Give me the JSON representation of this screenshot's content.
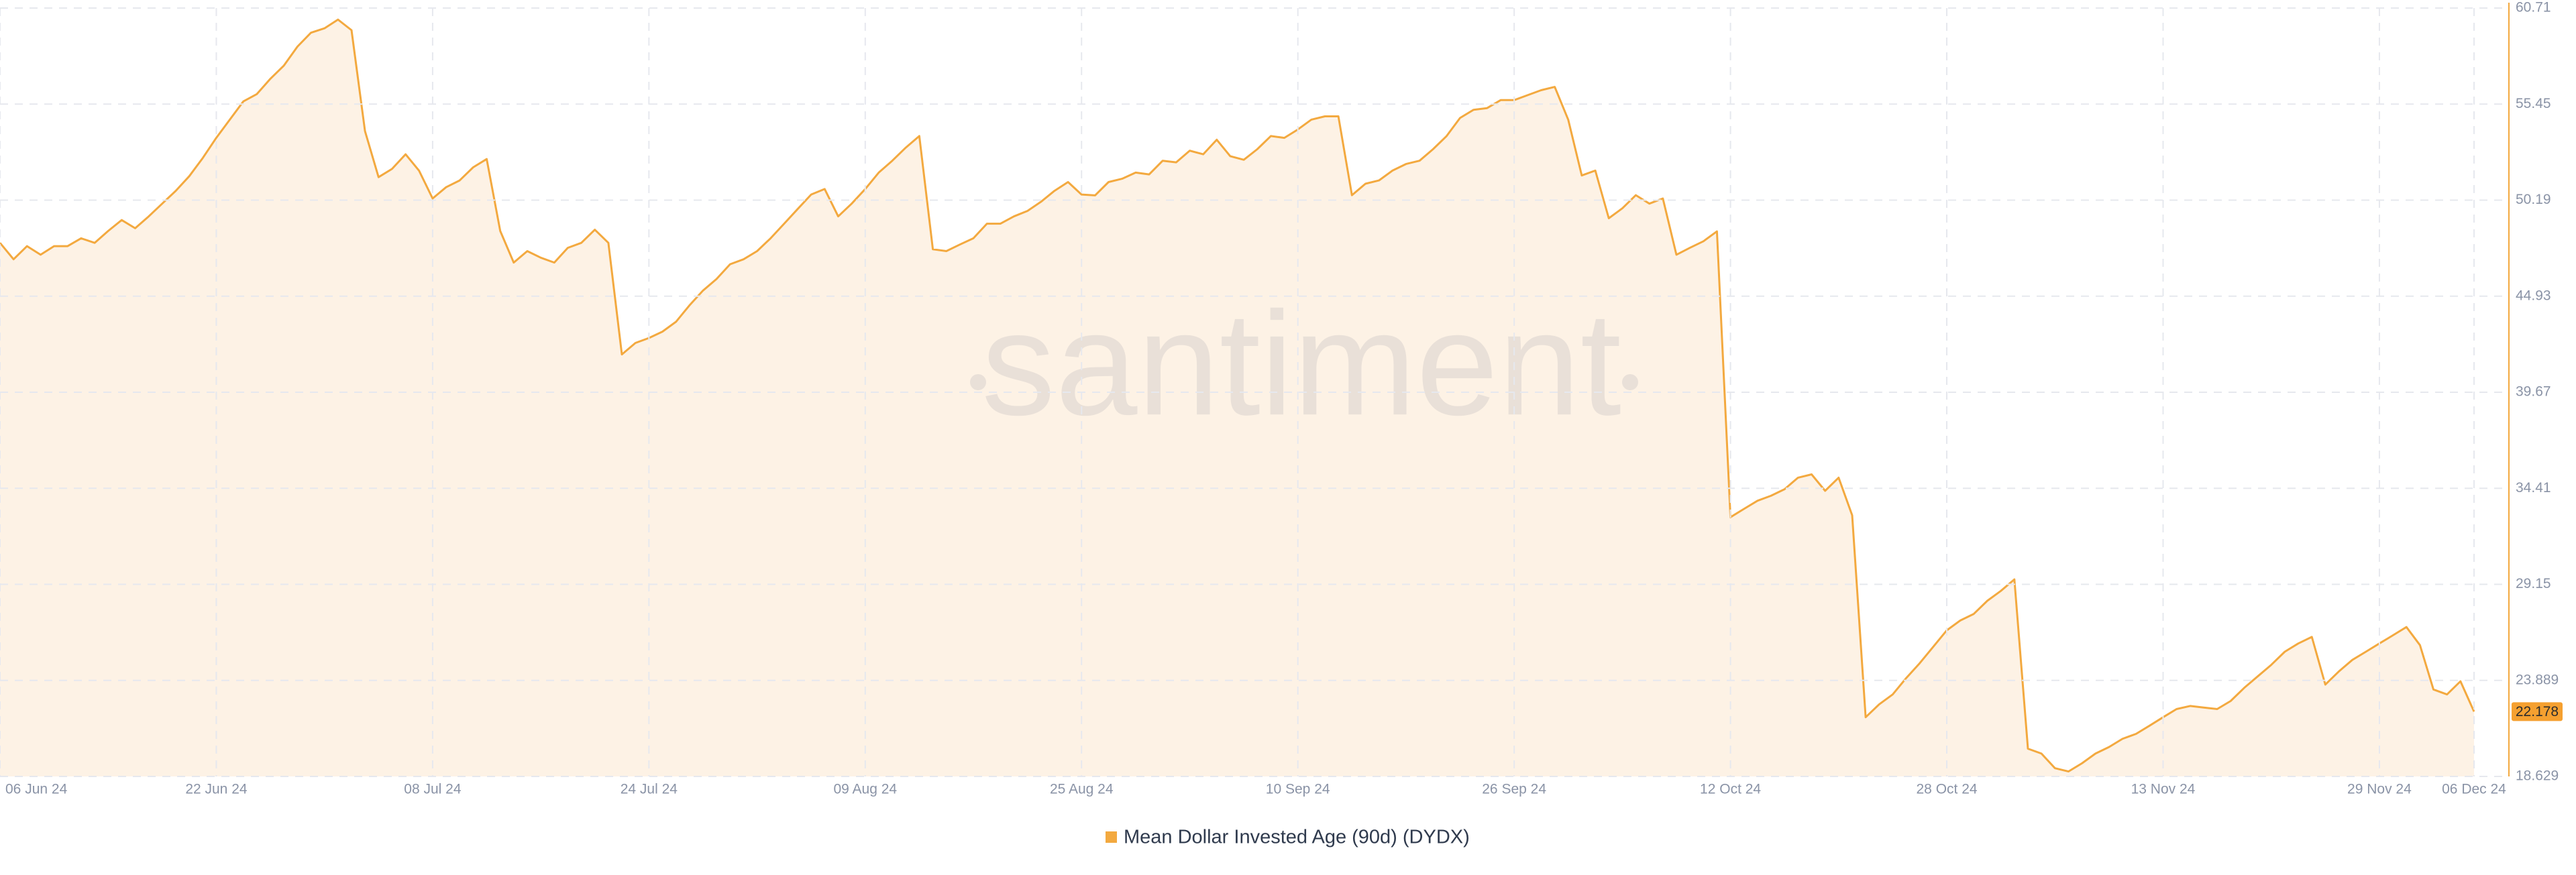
{
  "chart_data": {
    "type": "area",
    "watermark": "santiment",
    "x": [
      "2024-06-06",
      "2024-06-07",
      "2024-06-08",
      "2024-06-09",
      "2024-06-10",
      "2024-06-11",
      "2024-06-12",
      "2024-06-13",
      "2024-06-14",
      "2024-06-15",
      "2024-06-16",
      "2024-06-17",
      "2024-06-18",
      "2024-06-19",
      "2024-06-20",
      "2024-06-21",
      "2024-06-22",
      "2024-06-23",
      "2024-06-24",
      "2024-06-25",
      "2024-06-26",
      "2024-06-27",
      "2024-06-28",
      "2024-06-29",
      "2024-06-30",
      "2024-07-01",
      "2024-07-02",
      "2024-07-03",
      "2024-07-04",
      "2024-07-05",
      "2024-07-06",
      "2024-07-07",
      "2024-07-08",
      "2024-07-09",
      "2024-07-10",
      "2024-07-11",
      "2024-07-12",
      "2024-07-13",
      "2024-07-14",
      "2024-07-15",
      "2024-07-16",
      "2024-07-17",
      "2024-07-18",
      "2024-07-19",
      "2024-07-20",
      "2024-07-21",
      "2024-07-22",
      "2024-07-23",
      "2024-07-24",
      "2024-07-25",
      "2024-07-26",
      "2024-07-27",
      "2024-07-28",
      "2024-07-29",
      "2024-07-30",
      "2024-07-31",
      "2024-08-01",
      "2024-08-02",
      "2024-08-03",
      "2024-08-04",
      "2024-08-05",
      "2024-08-06",
      "2024-08-07",
      "2024-08-08",
      "2024-08-09",
      "2024-08-10",
      "2024-08-11",
      "2024-08-12",
      "2024-08-13",
      "2024-08-14",
      "2024-08-15",
      "2024-08-16",
      "2024-08-17",
      "2024-08-18",
      "2024-08-19",
      "2024-08-20",
      "2024-08-21",
      "2024-08-22",
      "2024-08-23",
      "2024-08-24",
      "2024-08-25",
      "2024-08-26",
      "2024-08-27",
      "2024-08-28",
      "2024-08-29",
      "2024-08-30",
      "2024-08-31",
      "2024-09-01",
      "2024-09-02",
      "2024-09-03",
      "2024-09-04",
      "2024-09-05",
      "2024-09-06",
      "2024-09-07",
      "2024-09-08",
      "2024-09-09",
      "2024-09-10",
      "2024-09-11",
      "2024-09-12",
      "2024-09-13",
      "2024-09-14",
      "2024-09-15",
      "2024-09-16",
      "2024-09-17",
      "2024-09-18",
      "2024-09-19",
      "2024-09-20",
      "2024-09-21",
      "2024-09-22",
      "2024-09-23",
      "2024-09-24",
      "2024-09-25",
      "2024-09-26",
      "2024-09-27",
      "2024-09-28",
      "2024-09-29",
      "2024-09-30",
      "2024-10-01",
      "2024-10-02",
      "2024-10-03",
      "2024-10-04",
      "2024-10-05",
      "2024-10-06",
      "2024-10-07",
      "2024-10-08",
      "2024-10-09",
      "2024-10-10",
      "2024-10-11",
      "2024-10-12",
      "2024-10-13",
      "2024-10-14",
      "2024-10-15",
      "2024-10-16",
      "2024-10-17",
      "2024-10-18",
      "2024-10-19",
      "2024-10-20",
      "2024-10-21",
      "2024-10-22",
      "2024-10-23",
      "2024-10-24",
      "2024-10-25",
      "2024-10-26",
      "2024-10-27",
      "2024-10-28",
      "2024-10-29",
      "2024-10-30",
      "2024-10-31",
      "2024-11-01",
      "2024-11-02",
      "2024-11-03",
      "2024-11-04",
      "2024-11-05",
      "2024-11-06",
      "2024-11-07",
      "2024-11-08",
      "2024-11-09",
      "2024-11-10",
      "2024-11-11",
      "2024-11-12",
      "2024-11-13",
      "2024-11-14",
      "2024-11-15",
      "2024-11-16",
      "2024-11-17",
      "2024-11-18",
      "2024-11-19",
      "2024-11-20",
      "2024-11-21",
      "2024-11-22",
      "2024-11-23",
      "2024-11-24",
      "2024-11-25",
      "2024-11-26",
      "2024-11-27",
      "2024-11-28",
      "2024-11-29",
      "2024-11-30",
      "2024-12-01",
      "2024-12-02",
      "2024-12-03",
      "2024-12-04",
      "2024-12-05",
      "2024-12-06"
    ],
    "series": [
      {
        "name": "Mean Dollar Invested Age (90d) (DYDX)",
        "color": "#f3a93f",
        "fill": "#fdf2e5",
        "values": [
          47.85,
          46.95,
          47.67,
          47.2,
          47.67,
          47.67,
          48.1,
          47.85,
          48.5,
          49.1,
          48.65,
          49.3,
          50.0,
          50.7,
          51.5,
          52.5,
          53.6,
          54.6,
          55.6,
          56.0,
          56.84,
          57.56,
          58.6,
          59.36,
          59.6,
          60.08,
          59.5,
          53.97,
          51.45,
          51.9,
          52.7,
          51.8,
          50.28,
          50.9,
          51.27,
          51.99,
          52.44,
          48.5,
          46.77,
          47.4,
          47.04,
          46.77,
          47.58,
          47.85,
          48.57,
          47.85,
          41.74,
          42.37,
          42.64,
          42.99,
          43.53,
          44.43,
          45.24,
          45.87,
          46.68,
          46.95,
          47.4,
          48.1,
          48.9,
          49.7,
          50.5,
          50.8,
          49.3,
          50.0,
          50.8,
          51.7,
          52.35,
          53.07,
          53.7,
          47.5,
          47.4,
          47.76,
          48.1,
          48.9,
          48.9,
          49.3,
          49.6,
          50.1,
          50.7,
          51.18,
          50.5,
          50.45,
          51.18,
          51.36,
          51.7,
          51.6,
          52.35,
          52.26,
          52.9,
          52.7,
          53.5,
          52.6,
          52.4,
          52.98,
          53.7,
          53.6,
          54.06,
          54.6,
          54.78,
          54.78,
          50.46,
          51.09,
          51.27,
          51.81,
          52.17,
          52.35,
          52.98,
          53.7,
          54.69,
          55.14,
          55.23,
          55.67,
          55.67,
          55.94,
          56.21,
          56.39,
          54.6,
          51.54,
          51.81,
          49.2,
          49.74,
          50.46,
          50.0,
          50.28,
          47.2,
          47.58,
          47.94,
          48.48,
          32.83,
          33.28,
          33.73,
          34.0,
          34.36,
          34.99,
          35.17,
          34.27,
          34.99,
          32.93,
          21.87,
          22.58,
          23.12,
          24.02,
          24.83,
          25.73,
          26.63,
          27.17,
          27.53,
          28.25,
          28.79,
          29.42,
          20.15,
          19.88,
          19.08,
          18.9,
          19.35,
          19.88,
          20.24,
          20.69,
          20.96,
          21.41,
          21.87,
          22.32,
          22.49,
          22.4,
          22.32,
          22.76,
          23.48,
          24.11,
          24.74,
          25.46,
          25.91,
          26.27,
          23.66,
          24.38,
          25.01,
          25.46,
          25.91,
          26.36,
          26.81,
          25.82,
          23.39,
          23.12,
          23.84,
          22.178
        ]
      }
    ],
    "xlim": [
      "2024-06-06",
      "2024-12-06"
    ],
    "xticks": [
      {
        "value": "2024-06-06",
        "label": "06 Jun 24"
      },
      {
        "value": "2024-06-22",
        "label": "22 Jun 24"
      },
      {
        "value": "2024-07-08",
        "label": "08 Jul 24"
      },
      {
        "value": "2024-07-24",
        "label": "24 Jul 24"
      },
      {
        "value": "2024-08-09",
        "label": "09 Aug 24"
      },
      {
        "value": "2024-08-25",
        "label": "25 Aug 24"
      },
      {
        "value": "2024-09-10",
        "label": "10 Sep 24"
      },
      {
        "value": "2024-09-26",
        "label": "26 Sep 24"
      },
      {
        "value": "2024-10-12",
        "label": "12 Oct 24"
      },
      {
        "value": "2024-10-28",
        "label": "28 Oct 24"
      },
      {
        "value": "2024-11-13",
        "label": "13 Nov 24"
      },
      {
        "value": "2024-11-29",
        "label": "29 Nov 24"
      },
      {
        "value": "2024-12-06",
        "label": "06 Dec 24"
      }
    ],
    "ylim": [
      18.629,
      60.71
    ],
    "yticks": [
      18.629,
      23.889,
      29.15,
      34.41,
      39.67,
      44.93,
      50.19,
      55.45,
      60.71
    ],
    "grid": true,
    "last_value_color": "#f5a030"
  }
}
